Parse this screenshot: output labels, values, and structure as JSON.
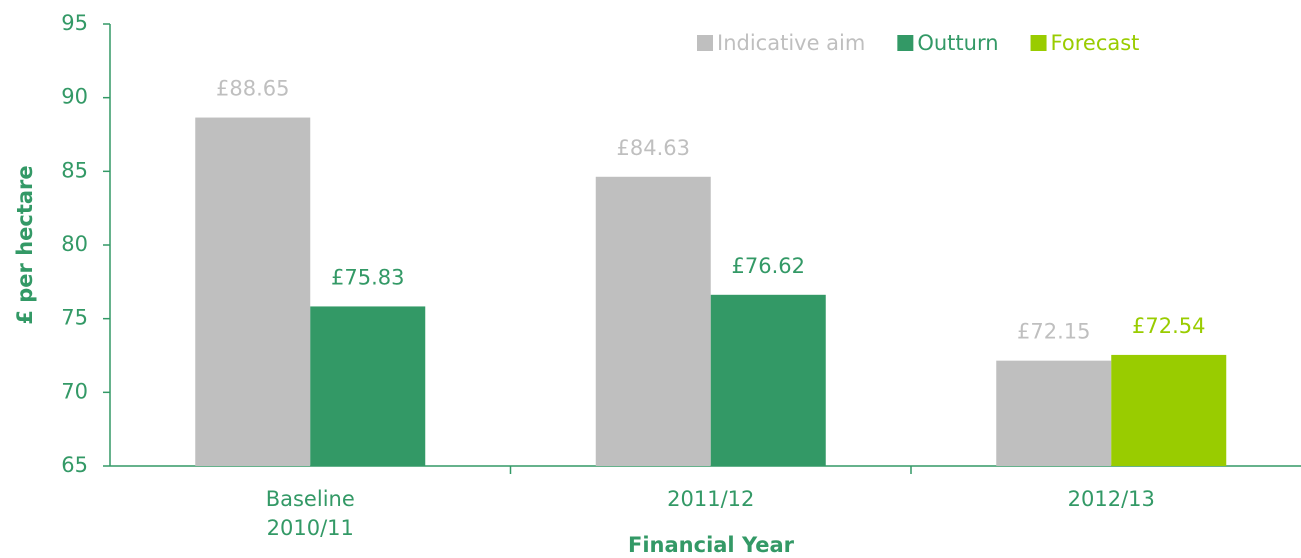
{
  "chart_data": {
    "type": "bar",
    "y_label": "£ per hectare",
    "x_label": "Financial Year",
    "categories": [
      "Baseline\n2010/11",
      "2011/12",
      "2012/13"
    ],
    "series": [
      {
        "name": "Indicative aim",
        "color": "#bfbfbf",
        "values": [
          88.65,
          84.63,
          72.15
        ],
        "value_labels": [
          "£88.65",
          "£84.63",
          "£72.15"
        ]
      },
      {
        "name": "Outturn",
        "color": "#339966",
        "values": [
          75.83,
          76.62,
          null
        ],
        "value_labels": [
          "£75.83",
          "£76.62",
          null
        ]
      },
      {
        "name": "Forecast",
        "color": "#99cc00",
        "values": [
          null,
          null,
          72.54
        ],
        "value_labels": [
          null,
          null,
          "£72.54"
        ]
      }
    ],
    "ylim": [
      65,
      95
    ],
    "yticks": [
      65,
      70,
      75,
      80,
      85,
      90,
      95
    ],
    "legend": "top-right",
    "grid": false
  }
}
